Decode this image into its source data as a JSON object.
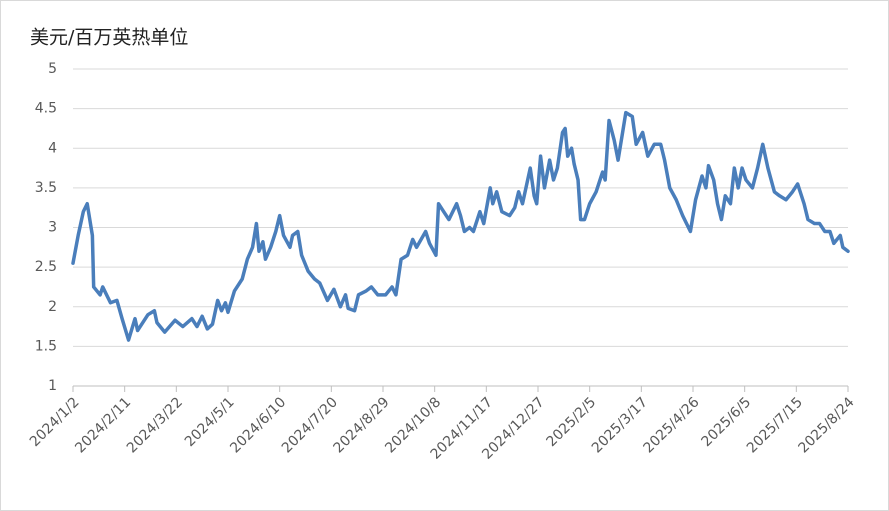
{
  "chart_data": {
    "type": "line",
    "y_label": "美元/百万英热单位",
    "x": [
      "2024/1/2",
      "2024/1/6",
      "2024/1/10",
      "2024/1/13",
      "2024/1/17",
      "2024/1/18",
      "2024/1/23",
      "2024/1/25",
      "2024/1/31",
      "2024/2/5",
      "2024/2/9",
      "2024/2/14",
      "2024/2/19",
      "2024/2/21",
      "2024/2/29",
      "2024/3/5",
      "2024/3/7",
      "2024/3/13",
      "2024/3/21",
      "2024/3/27",
      "2024/4/3",
      "2024/4/7",
      "2024/4/11",
      "2024/4/15",
      "2024/4/19",
      "2024/4/23",
      "2024/4/26",
      "2024/4/29",
      "2024/5/1",
      "2024/5/6",
      "2024/5/12",
      "2024/5/16",
      "2024/5/20",
      "2024/5/23",
      "2024/5/25",
      "2024/5/28",
      "2024/5/30",
      "2024/6/3",
      "2024/6/7",
      "2024/6/10",
      "2024/6/13",
      "2024/6/18",
      "2024/6/20",
      "2024/6/24",
      "2024/6/27",
      "2024/7/2",
      "2024/7/7",
      "2024/7/11",
      "2024/7/17",
      "2024/7/22",
      "2024/7/27",
      "2024/7/31",
      "2024/8/2",
      "2024/8/7",
      "2024/8/10",
      "2024/8/16",
      "2024/8/20",
      "2024/8/25",
      "2024/8/31",
      "2024/9/5",
      "2024/9/8",
      "2024/9/12",
      "2024/9/17",
      "2024/9/21",
      "2024/9/24",
      "2024/10/1",
      "2024/10/4",
      "2024/10/9",
      "2024/10/11",
      "2024/10/15",
      "2024/10/19",
      "2024/10/25",
      "2024/10/28",
      "2024/10/31",
      "2024/11/4",
      "2024/11/7",
      "2024/11/12",
      "2024/11/15",
      "2024/11/20",
      "2024/11/22",
      "2024/11/25",
      "2024/11/29",
      "2024/12/5",
      "2024/12/9",
      "2024/12/12",
      "2024/12/15",
      "2024/12/21",
      "2024/12/24",
      "2024/12/26",
      "2024/12/29",
      "2025/1/1",
      "2025/1/5",
      "2025/1/8",
      "2025/1/11",
      "2025/1/15",
      "2025/1/17",
      "2025/1/19",
      "2025/1/22",
      "2025/1/24",
      "2025/1/27",
      "2025/1/29",
      "2025/2/1",
      "2025/2/5",
      "2025/2/10",
      "2025/2/15",
      "2025/2/17",
      "2025/2/20",
      "2025/2/24",
      "2025/2/27",
      "2025/3/2",
      "2025/3/5",
      "2025/3/10",
      "2025/3/13",
      "2025/3/18",
      "2025/3/22",
      "2025/3/27",
      "2025/4/1",
      "2025/4/4",
      "2025/4/8",
      "2025/4/13",
      "2025/4/18",
      "2025/4/24",
      "2025/4/28",
      "2025/5/3",
      "2025/5/6",
      "2025/5/8",
      "2025/5/12",
      "2025/5/15",
      "2025/5/18",
      "2025/5/21",
      "2025/5/25",
      "2025/5/28",
      "2025/5/31",
      "2025/6/3",
      "2025/6/6",
      "2025/6/11",
      "2025/6/15",
      "2025/6/19",
      "2025/6/23",
      "2025/6/28",
      "2025/7/2",
      "2025/7/7",
      "2025/7/12",
      "2025/7/16",
      "2025/7/21",
      "2025/7/24",
      "2025/7/29",
      "2025/8/2",
      "2025/8/6",
      "2025/8/10",
      "2025/8/13",
      "2025/8/18",
      "2025/8/20",
      "2025/8/24"
    ],
    "values": [
      2.55,
      2.9,
      3.2,
      3.3,
      2.9,
      2.25,
      2.15,
      2.25,
      2.05,
      2.08,
      1.85,
      1.58,
      1.85,
      1.7,
      1.9,
      1.95,
      1.8,
      1.68,
      1.83,
      1.75,
      1.85,
      1.75,
      1.88,
      1.72,
      1.78,
      2.08,
      1.95,
      2.05,
      1.93,
      2.2,
      2.35,
      2.6,
      2.75,
      3.05,
      2.7,
      2.82,
      2.6,
      2.75,
      2.95,
      3.15,
      2.9,
      2.75,
      2.9,
      2.95,
      2.65,
      2.45,
      2.35,
      2.3,
      2.08,
      2.22,
      2.0,
      2.15,
      1.98,
      1.95,
      2.15,
      2.2,
      2.25,
      2.15,
      2.15,
      2.25,
      2.15,
      2.6,
      2.65,
      2.85,
      2.75,
      2.95,
      2.8,
      2.65,
      3.3,
      3.2,
      3.1,
      3.3,
      3.15,
      2.95,
      3.0,
      2.95,
      3.2,
      3.05,
      3.5,
      3.3,
      3.45,
      3.2,
      3.15,
      3.25,
      3.45,
      3.3,
      3.75,
      3.4,
      3.3,
      3.9,
      3.5,
      3.85,
      3.6,
      3.75,
      4.2,
      4.25,
      3.9,
      4.0,
      3.8,
      3.6,
      3.1,
      3.1,
      3.3,
      3.45,
      3.7,
      3.6,
      4.35,
      4.1,
      3.85,
      4.15,
      4.45,
      4.4,
      4.05,
      4.2,
      3.9,
      4.05,
      4.05,
      3.85,
      3.5,
      3.35,
      3.15,
      2.95,
      3.35,
      3.65,
      3.5,
      3.78,
      3.6,
      3.3,
      3.1,
      3.4,
      3.3,
      3.75,
      3.5,
      3.75,
      3.6,
      3.5,
      3.75,
      4.05,
      3.75,
      3.45,
      3.4,
      3.35,
      3.45,
      3.55,
      3.3,
      3.1,
      3.05,
      3.05,
      2.95,
      2.95,
      2.8,
      2.9,
      2.75,
      2.7
    ],
    "color": "#4a7ebb",
    "xlim": [
      "2024/1/2",
      "2025/8/24"
    ],
    "xticks": [
      "2024/1/2",
      "2024/2/11",
      "2024/3/22",
      "2024/5/1",
      "2024/6/10",
      "2024/7/20",
      "2024/8/29",
      "2024/10/8",
      "2024/11/17",
      "2024/12/27",
      "2025/2/5",
      "2025/3/17",
      "2025/4/26",
      "2025/6/5",
      "2025/7/15",
      "2025/8/24"
    ],
    "ylim": [
      1,
      5
    ],
    "yticks": [
      1,
      1.5,
      2,
      2.5,
      3,
      3.5,
      4,
      4.5,
      5
    ],
    "grid": true
  }
}
